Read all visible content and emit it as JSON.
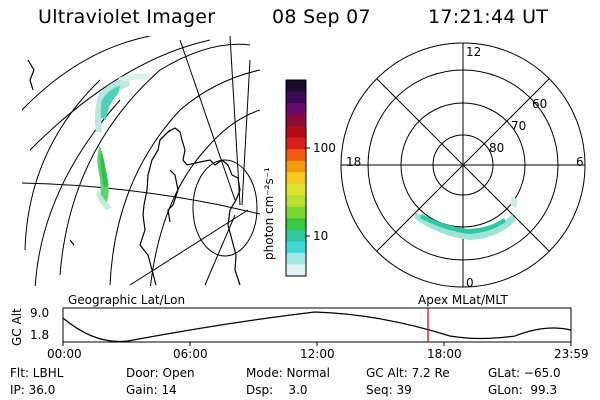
{
  "header": {
    "instrument": "Ultraviolet Imager",
    "date": "08 Sep 07",
    "time": "17:21:44 UT"
  },
  "colorbar": {
    "label": "photon cm⁻²s⁻¹",
    "ticks": [
      "100",
      "10"
    ],
    "colors": [
      "#1a0a2e",
      "#3b0a55",
      "#6a0a6a",
      "#8a0a3a",
      "#b00a1a",
      "#d8201a",
      "#f05a10",
      "#f49a10",
      "#f6c820",
      "#e0e030",
      "#b8e030",
      "#78d830",
      "#38c840",
      "#30c8a0",
      "#40d8d8",
      "#a0e8e8",
      "#e0f4f4"
    ]
  },
  "left_panel": {
    "label": "Geographic Lat/Lon"
  },
  "right_panel": {
    "label": "Apex MLat/MLT",
    "mlt_labels": [
      "12",
      "18",
      "6",
      "0"
    ],
    "lat_labels": [
      "60",
      "70",
      "80"
    ]
  },
  "timeline": {
    "ylabel": "GC Alt",
    "yticks": [
      "9.0",
      "1.8"
    ],
    "xticks": [
      "00:00",
      "06:00",
      "12:00",
      "18:00",
      "23:59"
    ]
  },
  "info": {
    "filter": "Flt: LBHL",
    "ip": "IP: 36.0",
    "door": "Door: Open",
    "gain": "Gain: 14",
    "mode": "Mode: Normal",
    "dsp": "Dsp:    3.0",
    "gc_alt": "GC Alt: 7.2 Re",
    "seq": "Seq: 39",
    "glat": "GLat: −65.0",
    "glon": "GLon:  99.3"
  }
}
